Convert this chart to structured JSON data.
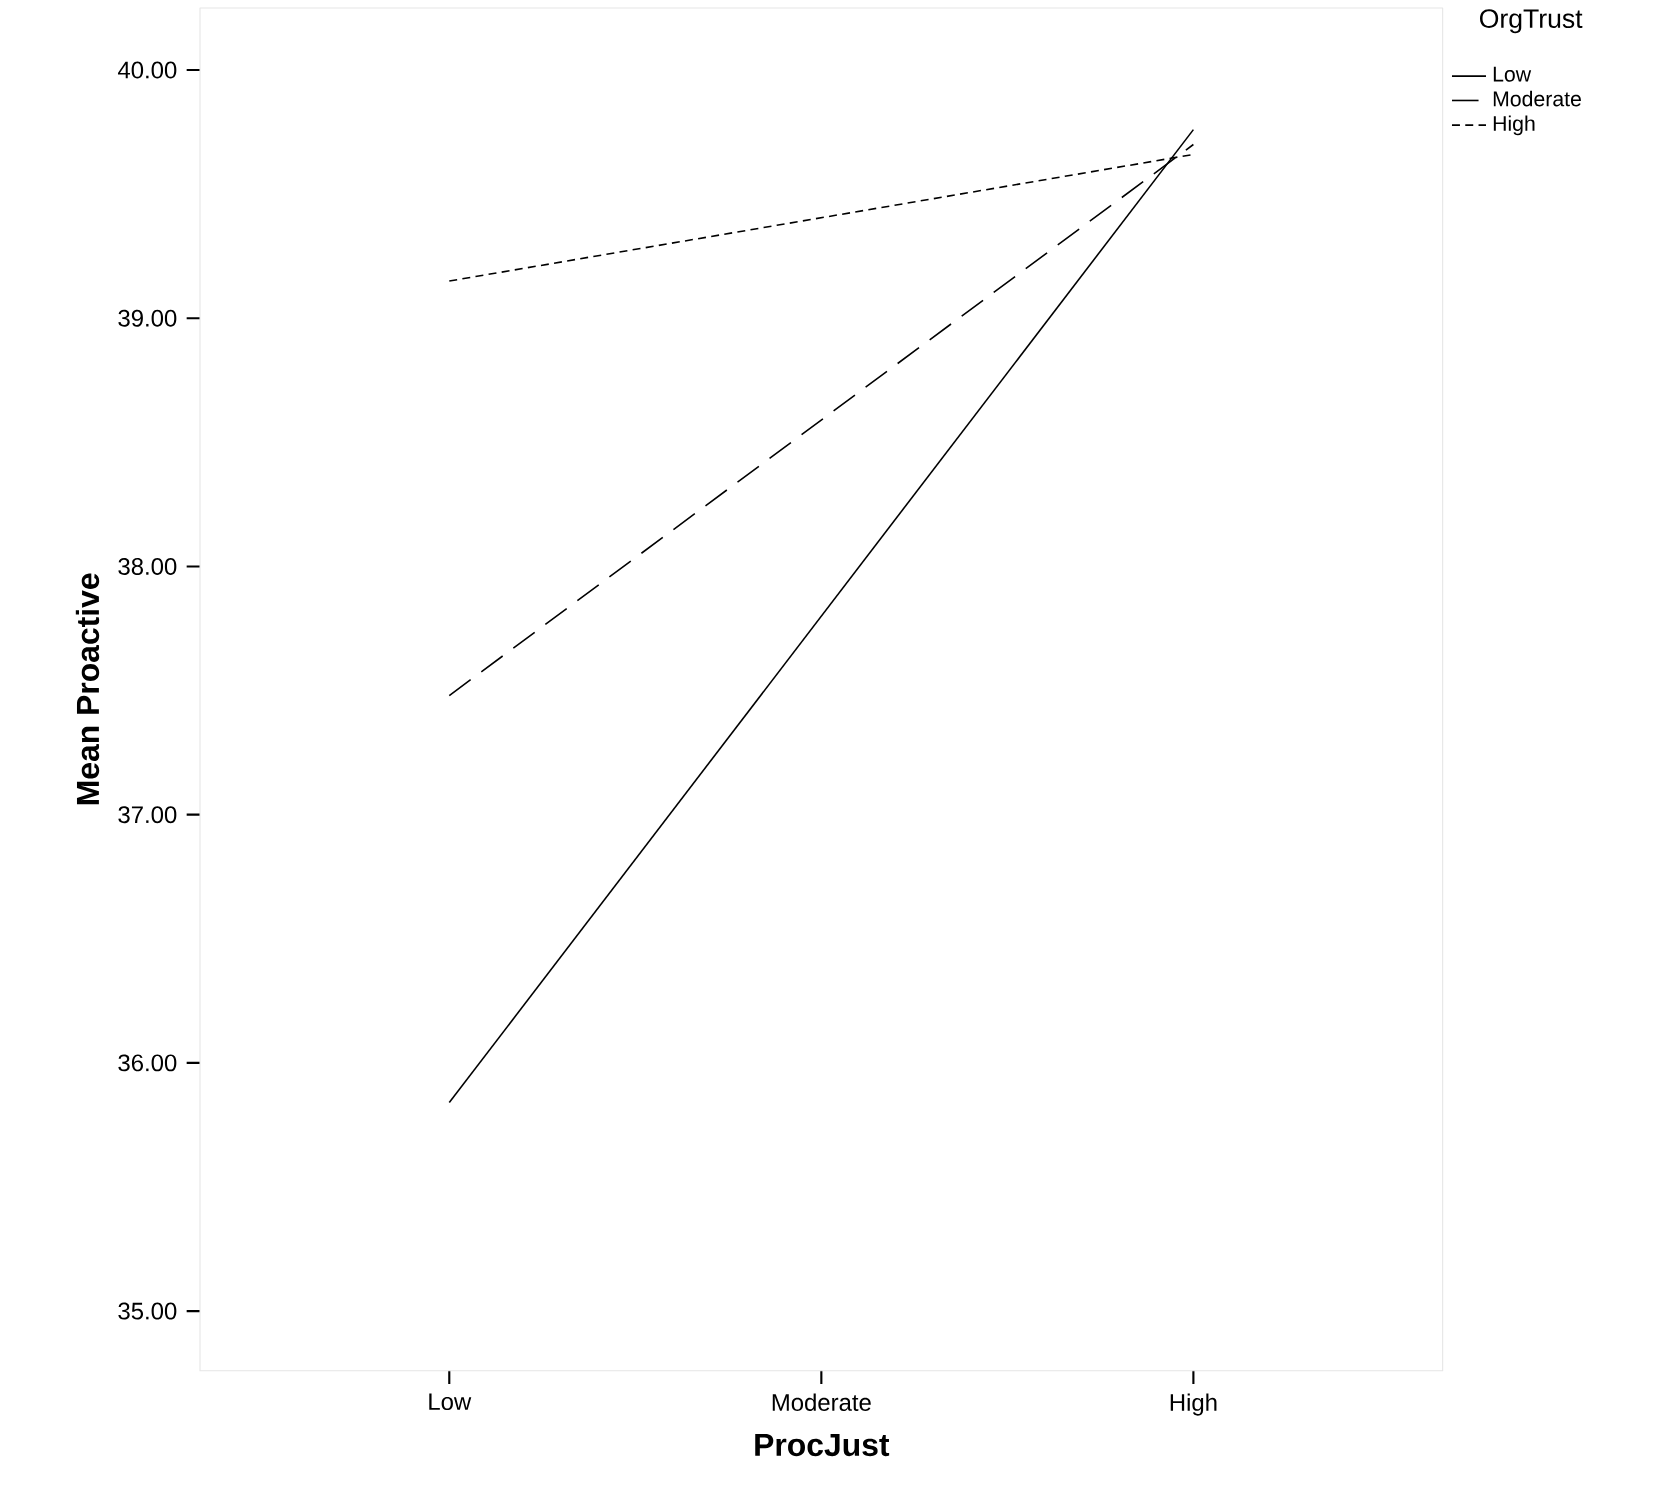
{
  "chart_data": {
    "type": "line",
    "xlabel": "ProcJust",
    "ylabel": "Mean Proactive",
    "legend_title": "OrgTrust",
    "legend": "top right",
    "categories": [
      "Low",
      "Moderate",
      "High"
    ],
    "ylim": [
      34.76,
      40.25
    ],
    "yticks": [
      {
        "value": 35,
        "label": "35.00"
      },
      {
        "value": 36,
        "label": "36.00"
      },
      {
        "value": 37,
        "label": "37.00"
      },
      {
        "value": 38,
        "label": "38.00"
      },
      {
        "value": 39,
        "label": "39.00"
      },
      {
        "value": 40,
        "label": "40.00"
      }
    ],
    "marker": "none",
    "series": [
      {
        "name": "Low",
        "color": "#000000",
        "line_style": "solid",
        "values": [
          35.84,
          null,
          39.76
        ]
      },
      {
        "name": "Moderate",
        "color": "#000000",
        "line_style": "dashed",
        "values": [
          37.48,
          null,
          39.7
        ]
      },
      {
        "name": "High",
        "color": "#000000",
        "line_style": "dotted",
        "values": [
          39.15,
          null,
          39.66
        ]
      }
    ]
  }
}
